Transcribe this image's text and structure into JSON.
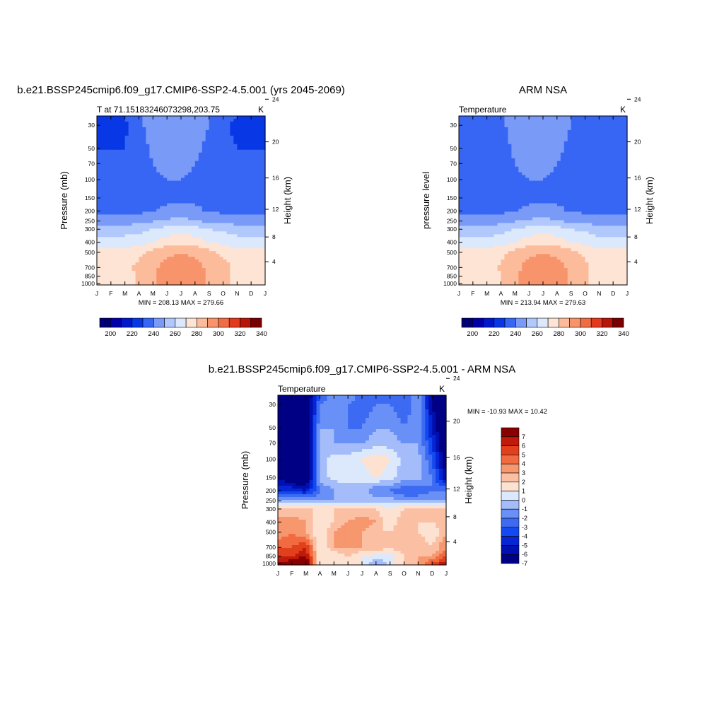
{
  "figure": {
    "panel1_title": "b.e21.BSSP245cmip6.f09_g17.CMIP6-SSP2-4.5.001 (yrs 2045-2069)",
    "panel2_title": "ARM NSA",
    "panel3_title": "b.e21.BSSP245cmip6.f09_g17.CMIP6-SSP2-4.5.001 - ARM NSA"
  },
  "colors": {
    "abs_levels": [
      "#000074",
      "#0000a8",
      "#0018c8",
      "#0838e6",
      "#3866f4",
      "#7a9af8",
      "#b0c8fc",
      "#dce8fc",
      "#fde4d4",
      "#fcbc9c",
      "#f8946c",
      "#f06c44",
      "#e23a1c",
      "#b81408",
      "#780000"
    ],
    "diff_levels": [
      "#000084",
      "#0010b0",
      "#0626d6",
      "#1448f0",
      "#3c6af2",
      "#6890f6",
      "#a4bcfa",
      "#dce8fc",
      "#fde2d2",
      "#fbc0a4",
      "#f7976e",
      "#f26a40",
      "#e2401c",
      "#c01a0a",
      "#880000"
    ]
  },
  "chart_data": [
    {
      "type": "heatmap",
      "title": "b.e21.BSSP245cmip6.f09_g17.CMIP6-SSP2-4.5.001 (yrs 2045-2069)",
      "subtitle_left": "T at 71.15183246073298,203.75",
      "units": "K",
      "xlabel": "",
      "ylabel": "Pressure (mb)",
      "ylabel_right": "Height (km)",
      "x_ticks": [
        "J",
        "F",
        "M",
        "A",
        "M",
        "J",
        "J",
        "A",
        "S",
        "O",
        "N",
        "D",
        "J"
      ],
      "y_ticks": [
        30,
        50,
        70,
        100,
        150,
        200,
        250,
        300,
        400,
        500,
        700,
        850,
        1000
      ],
      "y_scale": "log",
      "ylim": [
        1000,
        25
      ],
      "right_ticks": [
        24,
        20,
        16,
        12,
        8,
        4
      ],
      "stats": "MIN = 208.13 MAX = 279.66",
      "colorbar_labels": [
        "200",
        "220",
        "240",
        "260",
        "280",
        "300",
        "320",
        "340"
      ],
      "levels": [
        195,
        200,
        205,
        210,
        215,
        220,
        230,
        240,
        250,
        260,
        270,
        280,
        290,
        300,
        320,
        340
      ],
      "stratosphere": [
        [
          215,
          215,
          215,
          219,
          222,
          224,
          224,
          222,
          220,
          216,
          215,
          215,
          215
        ],
        [
          214,
          214,
          214,
          219,
          222,
          224,
          224,
          222,
          220,
          216,
          214,
          214,
          214
        ],
        [
          215,
          215,
          215,
          218,
          221,
          223,
          223,
          221,
          219,
          216,
          215,
          215,
          215
        ],
        [
          216,
          216,
          216,
          218,
          220,
          222,
          222,
          220,
          218,
          216,
          216,
          216,
          216
        ],
        [
          217,
          217,
          217,
          218,
          219,
          220,
          220,
          219,
          218,
          217,
          217,
          217,
          217
        ],
        [
          217,
          217,
          217,
          217,
          218,
          218,
          218,
          218,
          217,
          217,
          217,
          217,
          217
        ]
      ],
      "troposphere": [
        [
          218,
          218,
          218,
          218,
          219,
          222,
          224,
          222,
          219,
          218,
          218,
          218,
          218
        ],
        [
          225,
          225,
          225,
          226,
          229,
          232,
          233,
          231,
          228,
          226,
          225,
          225,
          225
        ],
        [
          236,
          236,
          236,
          237,
          240,
          244,
          246,
          244,
          240,
          238,
          236,
          236,
          236
        ],
        [
          244,
          244,
          244,
          246,
          250,
          255,
          257,
          255,
          250,
          247,
          244,
          244,
          244
        ],
        [
          254,
          254,
          254,
          258,
          263,
          268,
          270,
          268,
          263,
          258,
          254,
          254,
          254
        ],
        [
          258,
          258,
          258,
          262,
          268,
          274,
          276,
          274,
          268,
          263,
          258,
          258,
          258
        ],
        [
          257,
          257,
          257,
          261,
          268,
          276,
          279,
          276,
          269,
          263,
          257,
          257,
          257
        ]
      ]
    },
    {
      "type": "heatmap",
      "title": "ARM NSA",
      "subtitle_left": "Temperature",
      "units": "K",
      "xlabel": "",
      "ylabel": "pressure level",
      "ylabel_right": "Height (km)",
      "x_ticks": [
        "J",
        "F",
        "M",
        "A",
        "M",
        "J",
        "J",
        "A",
        "S",
        "O",
        "N",
        "D",
        "J"
      ],
      "y_ticks": [
        30,
        50,
        70,
        100,
        150,
        200,
        250,
        300,
        400,
        500,
        700,
        850,
        1000
      ],
      "y_scale": "log",
      "ylim": [
        1000,
        25
      ],
      "right_ticks": [
        24,
        20,
        16,
        12,
        8,
        4
      ],
      "stats": "MIN = 213.94 MAX = 279.63",
      "colorbar_labels": [
        "200",
        "220",
        "240",
        "260",
        "280",
        "300",
        "320",
        "340"
      ],
      "levels": [
        195,
        200,
        205,
        210,
        215,
        220,
        230,
        240,
        250,
        260,
        270,
        280,
        290,
        300,
        320,
        340
      ],
      "stratosphere": [
        [
          216,
          216,
          216,
          219,
          222,
          224,
          224,
          222,
          220,
          216,
          216,
          216,
          216
        ],
        [
          215,
          215,
          215,
          219,
          222,
          224,
          224,
          222,
          220,
          216,
          215,
          215,
          215
        ],
        [
          216,
          216,
          216,
          218,
          221,
          223,
          223,
          221,
          219,
          216,
          216,
          216,
          216
        ],
        [
          216,
          216,
          216,
          218,
          220,
          222,
          222,
          220,
          218,
          216,
          216,
          216,
          216
        ],
        [
          216,
          216,
          217,
          218,
          219,
          220,
          220,
          219,
          218,
          217,
          216,
          216,
          216
        ],
        [
          216,
          216,
          216,
          217,
          218,
          218,
          218,
          218,
          217,
          217,
          216,
          216,
          216
        ]
      ],
      "troposphere": [
        [
          217,
          217,
          217,
          218,
          219,
          222,
          224,
          222,
          219,
          218,
          217,
          217,
          217
        ],
        [
          224,
          224,
          224,
          226,
          229,
          232,
          233,
          231,
          228,
          226,
          224,
          224,
          224
        ],
        [
          235,
          235,
          235,
          237,
          240,
          244,
          246,
          244,
          240,
          238,
          235,
          235,
          235
        ],
        [
          243,
          243,
          243,
          246,
          250,
          255,
          257,
          255,
          250,
          247,
          243,
          243,
          243
        ],
        [
          253,
          253,
          253,
          258,
          263,
          268,
          270,
          268,
          263,
          258,
          253,
          253,
          253
        ],
        [
          256,
          256,
          256,
          261,
          267,
          274,
          276,
          274,
          268,
          262,
          256,
          256,
          256
        ],
        [
          255,
          255,
          255,
          260,
          267,
          276,
          279,
          276,
          268,
          262,
          255,
          255,
          255
        ]
      ]
    },
    {
      "type": "heatmap",
      "title": "b.e21.BSSP245cmip6.f09_g17.CMIP6-SSP2-4.5.001 - ARM NSA",
      "subtitle_left": "Temperature",
      "units": "K",
      "xlabel": "",
      "ylabel": "Pressure (mb)",
      "ylabel_right": "Height (km)",
      "x_ticks": [
        "J",
        "F",
        "M",
        "A",
        "M",
        "J",
        "J",
        "A",
        "S",
        "O",
        "N",
        "D",
        "J"
      ],
      "y_ticks": [
        30,
        50,
        70,
        100,
        150,
        200,
        250,
        300,
        400,
        500,
        700,
        850,
        1000
      ],
      "y_scale": "log",
      "ylim": [
        1000,
        25
      ],
      "right_ticks": [
        24,
        20,
        16,
        12,
        8,
        4
      ],
      "stats": "MIN = -10.93 MAX =  10.42",
      "colorbar_labels": [
        "7",
        "6",
        "5",
        "4",
        "3",
        "2",
        "1",
        "0",
        "-1",
        "-2",
        "-3",
        "-4",
        "-5",
        "-6",
        "-7"
      ],
      "levels": [
        -7,
        -6,
        -5,
        -4,
        -3,
        -2,
        -1,
        0,
        1,
        2,
        3,
        4,
        5,
        6,
        7
      ],
      "pressure_levels": [
        25,
        30,
        50,
        70,
        100,
        150,
        200,
        250,
        300,
        400,
        500,
        700,
        850,
        1000
      ],
      "values": [
        [
          -8,
          -8,
          -8,
          -3,
          -1,
          -1,
          -3,
          -3,
          -2,
          -3,
          -1,
          -6,
          -8
        ],
        [
          -8,
          -8,
          -8,
          -2,
          -1,
          -2,
          -3,
          -2,
          -2,
          -3,
          -1,
          -6,
          -8
        ],
        [
          -8,
          -8,
          -8,
          -1,
          -1,
          -2,
          -2,
          -1,
          -1,
          -2,
          -1,
          -5,
          -8
        ],
        [
          -8,
          -8,
          -8,
          -1,
          -1,
          -1,
          -1,
          -0.5,
          -0.5,
          -1,
          -1,
          -4,
          -8
        ],
        [
          -8,
          -8,
          -8,
          -0.5,
          0.5,
          0.5,
          1,
          2,
          1,
          -0.5,
          -0.5,
          -3,
          -7
        ],
        [
          -6,
          -8,
          -8,
          -0.5,
          0.3,
          0.5,
          0.5,
          1,
          0.5,
          -0.5,
          -0.5,
          -2,
          -6
        ],
        [
          -4,
          -4,
          -5,
          -2,
          -1,
          -0.5,
          -0.5,
          -2,
          -2,
          -3,
          -3,
          -2,
          -2
        ],
        [
          -1,
          -1,
          -1,
          -1,
          -1,
          -0.5,
          -0.3,
          -0.3,
          -0.5,
          -1,
          -1,
          -1,
          -1
        ],
        [
          3,
          2,
          2,
          2,
          2,
          2,
          2,
          2,
          1,
          2,
          2,
          2,
          3
        ],
        [
          3,
          4,
          3,
          1,
          2,
          3,
          4,
          3,
          1,
          3,
          2,
          2,
          3
        ],
        [
          3,
          4,
          3,
          1,
          3,
          4,
          3,
          2,
          2,
          3,
          2,
          1,
          3
        ],
        [
          5,
          5,
          6,
          1,
          3,
          3,
          3,
          3,
          2,
          3,
          3,
          2,
          4
        ],
        [
          6,
          6,
          7,
          1,
          1,
          2,
          1,
          0.5,
          0.5,
          2,
          3,
          3,
          5
        ],
        [
          7,
          8,
          9,
          1,
          1,
          2,
          1,
          -1,
          0.5,
          2,
          3,
          5,
          7
        ]
      ]
    }
  ]
}
